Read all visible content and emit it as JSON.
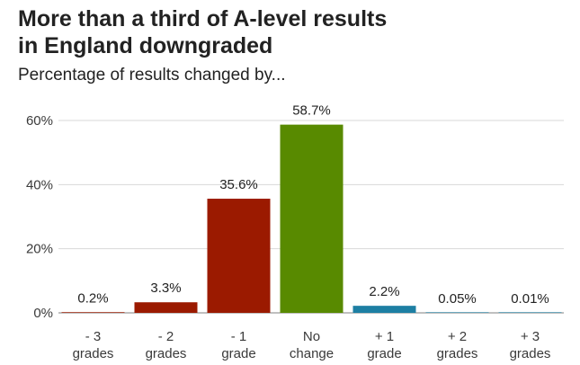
{
  "header": {
    "title": "More than a third of A-level results\nin England downgraded",
    "subtitle": "Percentage of results changed by..."
  },
  "chart_data": {
    "type": "bar",
    "title": "More than a third of A-level results in England downgraded",
    "subtitle": "Percentage of results changed by...",
    "xlabel": "",
    "ylabel": "",
    "ylim": [
      0,
      60
    ],
    "yticks": [
      0,
      20,
      40,
      60
    ],
    "ytick_labels": [
      "0%",
      "20%",
      "40%",
      "60%"
    ],
    "grid": true,
    "legend": "none",
    "categories": [
      [
        "- 3",
        "grades"
      ],
      [
        "- 2",
        "grades"
      ],
      [
        "- 1",
        "grade"
      ],
      [
        "No",
        "change"
      ],
      [
        "+ 1",
        "grade"
      ],
      [
        "+ 2",
        "grades"
      ],
      [
        "+ 3",
        "grades"
      ]
    ],
    "values": [
      0.2,
      3.3,
      35.6,
      58.7,
      2.2,
      0.05,
      0.01
    ],
    "value_labels": [
      "0.2%",
      "3.3%",
      "35.6%",
      "58.7%",
      "2.2%",
      "0.05%",
      "0.01%"
    ],
    "colors": [
      "#9b1a00",
      "#9b1a00",
      "#9b1a00",
      "#588a00",
      "#1d7fa3",
      "#1d7fa3",
      "#1d7fa3"
    ]
  }
}
